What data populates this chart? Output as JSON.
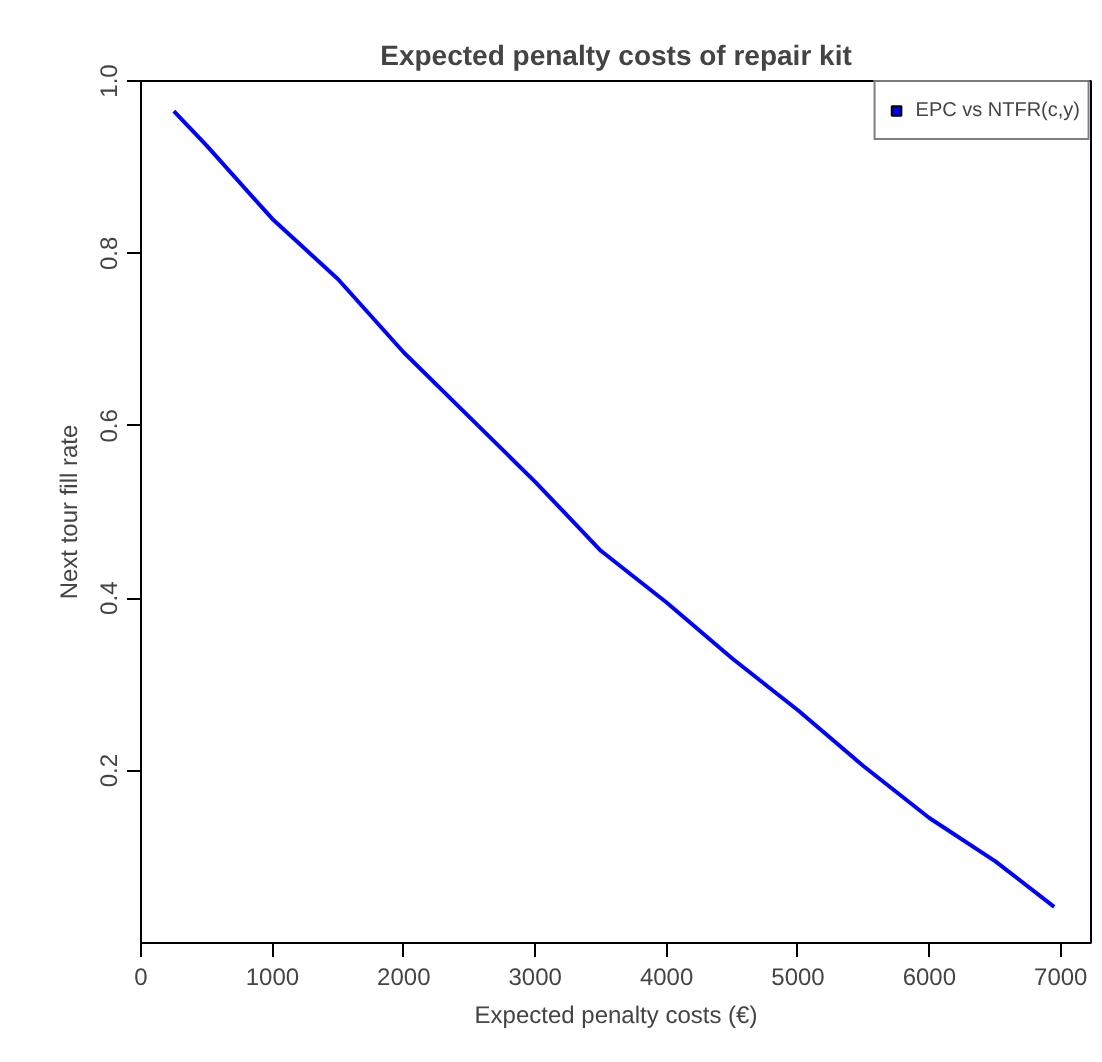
{
  "chart_data": {
    "type": "line",
    "title": "Expected penalty costs of repair kit",
    "xlabel": "Expected penalty costs (€)",
    "ylabel": "Next tour fill rate",
    "series": [
      {
        "name": "EPC vs NTFR(c,y)",
        "color": "#0000ff",
        "x": [
          250,
          500,
          1000,
          1500,
          2000,
          2500,
          3000,
          3500,
          4000,
          4500,
          5000,
          5500,
          6000,
          6500,
          6950
        ],
        "values": [
          0.965,
          0.925,
          0.84,
          0.77,
          0.685,
          0.61,
          0.535,
          0.455,
          0.395,
          0.33,
          0.27,
          0.205,
          0.145,
          0.095,
          0.042
        ]
      }
    ],
    "xlim": [
      0,
      7230
    ],
    "ylim": [
      0,
      1.0
    ],
    "xticks": [
      0,
      1000,
      2000,
      3000,
      4000,
      5000,
      6000,
      7000
    ],
    "yticks": [
      0.2,
      0.4,
      0.6,
      0.8,
      {
        "value": 1.0,
        "label": "1.0"
      }
    ],
    "grid": false,
    "legend": "top right",
    "marker": "none",
    "line_style": "solid"
  }
}
